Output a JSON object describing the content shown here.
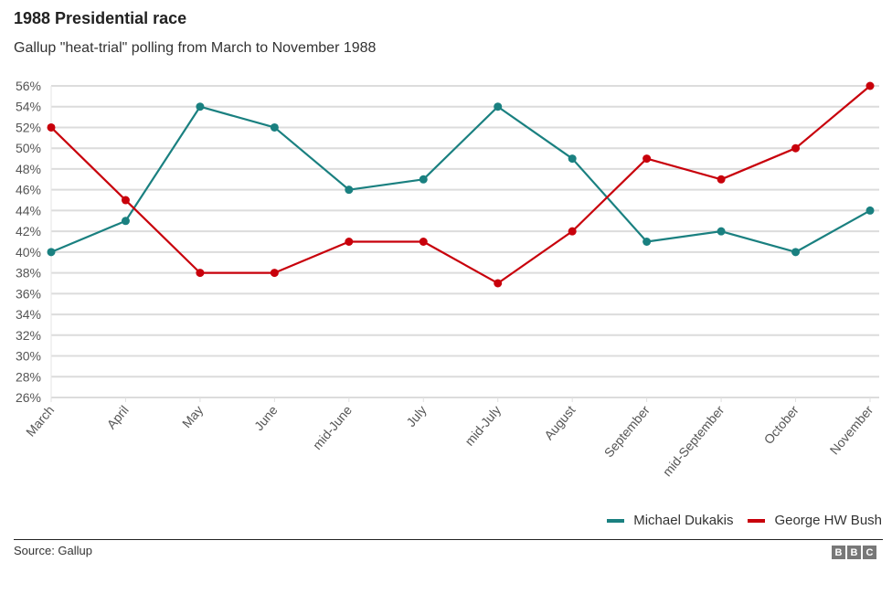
{
  "chart_data": {
    "type": "line",
    "title": "1988 Presidential race",
    "subtitle": "Gallup \"heat-trial\" polling from March to November 1988",
    "xlabel": "",
    "ylabel": "",
    "categories": [
      "March",
      "April",
      "May",
      "June",
      "mid-June",
      "July",
      "mid-July",
      "August",
      "September",
      "mid-September",
      "October",
      "November"
    ],
    "y_ticks": [
      "56%",
      "54%",
      "52%",
      "50%",
      "48%",
      "46%",
      "44%",
      "42%",
      "40%",
      "38%",
      "36%",
      "34%",
      "32%",
      "30%",
      "28%",
      "26%"
    ],
    "ylim": [
      26,
      56
    ],
    "y_unit": "%",
    "grid": true,
    "legend_position": "bottom-right",
    "series": [
      {
        "name": "Michael Dukakis",
        "color": "#1a8080",
        "values": [
          40,
          43,
          54,
          52,
          46,
          47,
          54,
          49,
          41,
          42,
          40,
          44
        ]
      },
      {
        "name": "George HW Bush",
        "color": "#c8000b",
        "values": [
          52,
          45,
          38,
          38,
          41,
          41,
          37,
          42,
          49,
          47,
          50,
          56
        ]
      }
    ]
  },
  "footer": {
    "source": "Source: Gallup",
    "logo_letters": [
      "B",
      "B",
      "C"
    ]
  }
}
